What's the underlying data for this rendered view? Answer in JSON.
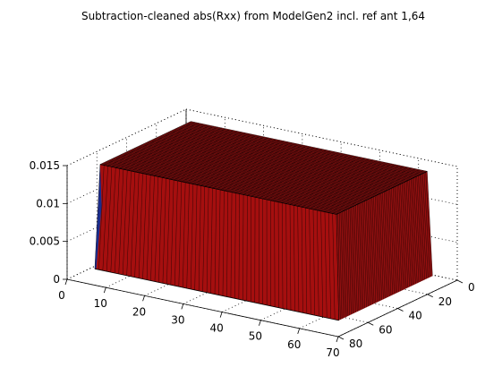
{
  "chart_data": {
    "type": "surface3d",
    "title": "Subtraction-cleaned abs(Rxx) from ModelGen2 incl. ref ant 1,64",
    "x_ticks": [
      "0",
      "10",
      "20",
      "30",
      "40",
      "50",
      "60",
      "70"
    ],
    "y_ticks": [
      "0",
      "20",
      "40",
      "60",
      "80"
    ],
    "z_ticks": [
      "0",
      "0.005",
      "0.01",
      "0.015"
    ],
    "xlim": [
      0,
      70
    ],
    "ylim": [
      0,
      80
    ],
    "zlim": [
      0,
      0.015
    ],
    "surface": {
      "x_range": [
        1,
        64
      ],
      "y_range": [
        1,
        64
      ],
      "plateau_x_range": [
        2,
        63
      ],
      "plateau_y_range": [
        2,
        63
      ],
      "plateau_value": 0.0138,
      "edge_value": 0
    },
    "grid": true,
    "colors": {
      "top_face": "#8a1010",
      "front_face": "#a50f0f",
      "side_face": "#961010",
      "edge_blue": "#1a2d8c"
    }
  }
}
